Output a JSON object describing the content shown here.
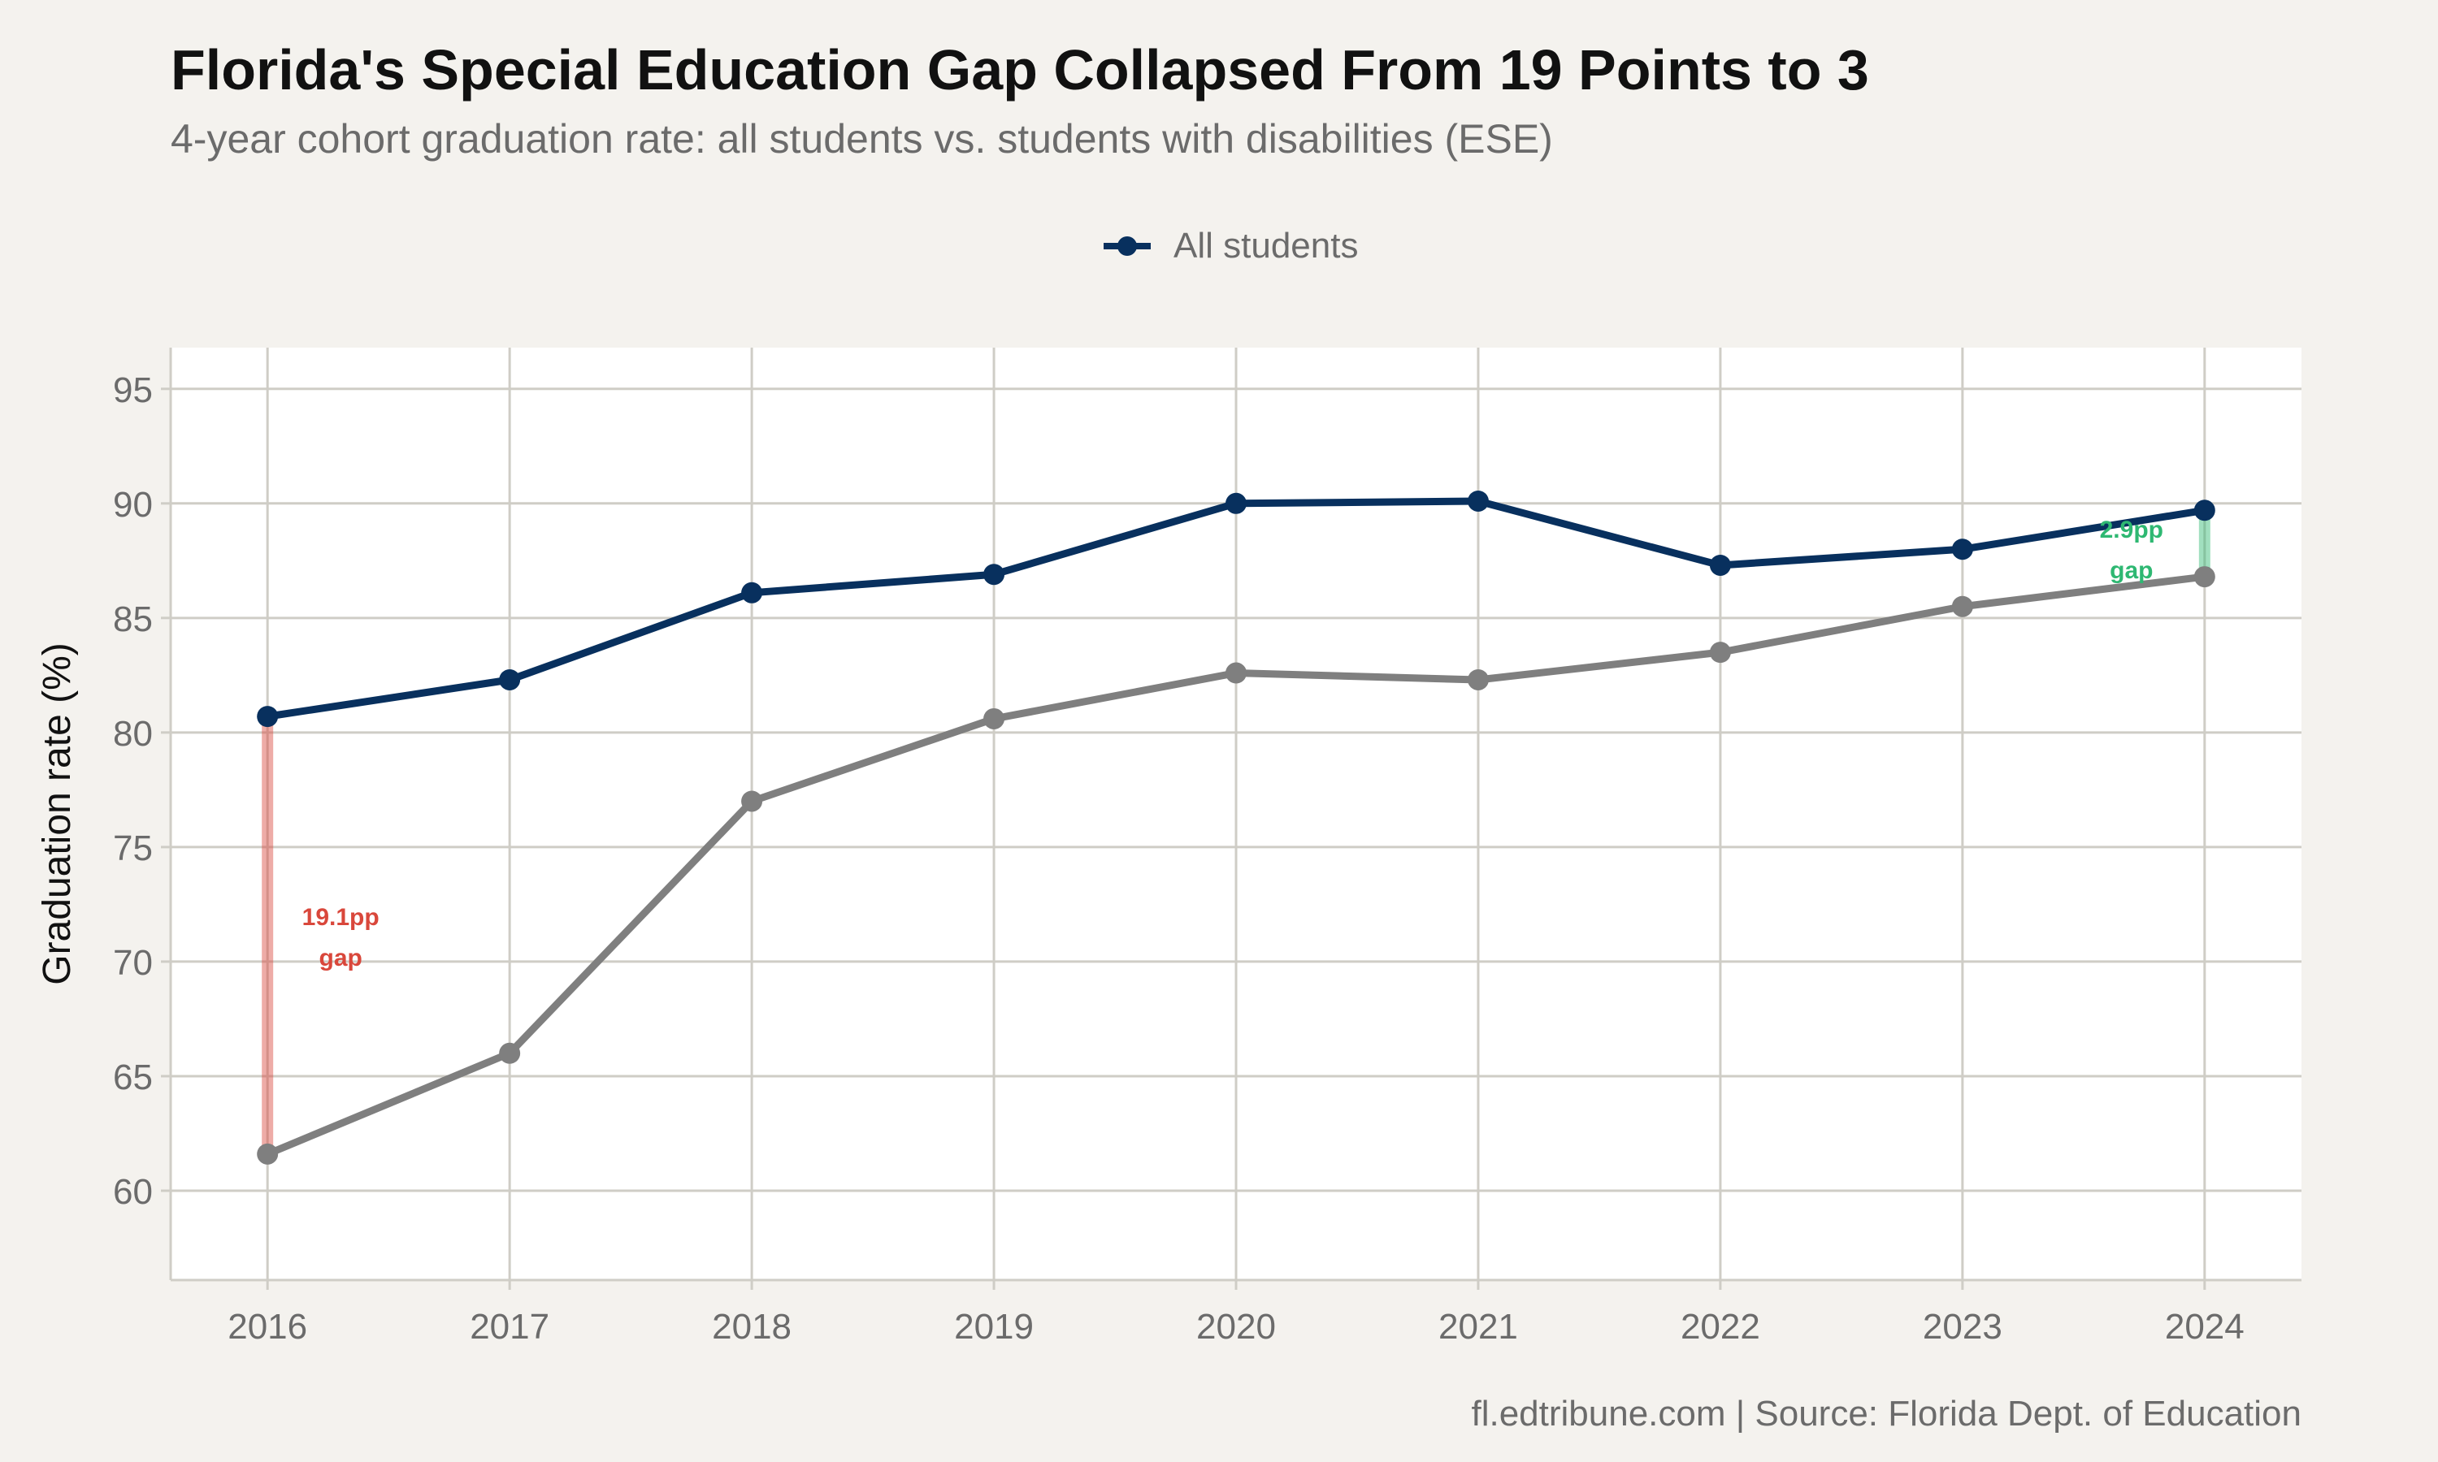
{
  "title": "Florida's Special Education Gap Collapsed From 19 Points to 3",
  "subtitle": "4-year cohort graduation rate: all students vs. students with disabilities (ESE)",
  "caption": "fl.edtribune.com | Source: Florida Dept. of Education",
  "colors": {
    "all_students": "#08305e",
    "ese": "#7f7f7f",
    "gap_start": "#d9473b",
    "gap_end": "#2eb872",
    "grid": "#cfcdc6",
    "panel": "#ffffff",
    "background": "#f4f2ee"
  },
  "chart_data": {
    "type": "line",
    "x": [
      2016,
      2017,
      2018,
      2019,
      2020,
      2021,
      2022,
      2023,
      2024
    ],
    "xlim": [
      2015.6,
      2024.4
    ],
    "ylim": [
      56.1,
      96.8
    ],
    "y_ticks": [
      60,
      65,
      70,
      75,
      80,
      85,
      90,
      95
    ],
    "ylabel": "Graduation rate (%)",
    "xlabel": "",
    "grid": true,
    "legend_position": "top",
    "series": [
      {
        "key": "all",
        "name": "All students",
        "values": [
          80.7,
          82.3,
          86.1,
          86.9,
          90.0,
          90.1,
          87.3,
          88.0,
          89.7
        ]
      },
      {
        "key": "ese",
        "values": [
          61.6,
          66.0,
          77.0,
          80.6,
          82.6,
          82.3,
          83.5,
          85.5,
          86.8
        ]
      }
    ],
    "annotations": [
      {
        "x": 2016,
        "y_top": 80.7,
        "y_bottom": 61.6,
        "lines": [
          "19.1pp",
          "gap"
        ],
        "color_key": "gap_start"
      },
      {
        "x": 2024,
        "y_top": 89.7,
        "y_bottom": 86.8,
        "lines": [
          "2.9pp",
          "gap"
        ],
        "color_key": "gap_end"
      }
    ]
  }
}
